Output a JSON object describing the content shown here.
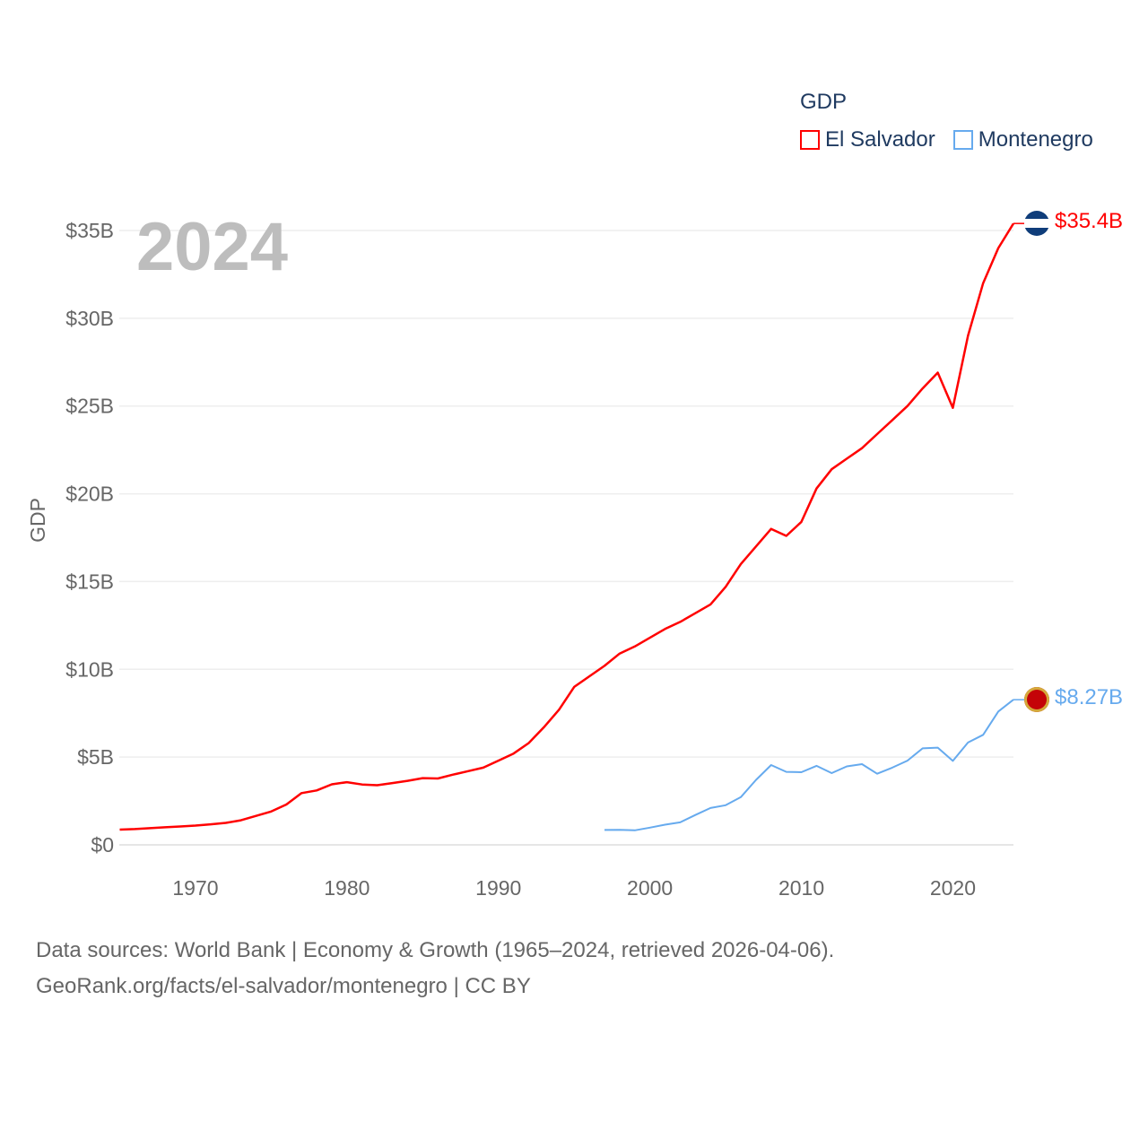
{
  "chart_data": {
    "type": "line",
    "title": "2024",
    "ylabel": "GDP",
    "xlabel": "",
    "xlim": [
      1965,
      2024
    ],
    "ylim": [
      0,
      35
    ],
    "x_ticks": [
      1970,
      1980,
      1990,
      2000,
      2010,
      2020
    ],
    "y_ticks": [
      {
        "v": 0,
        "label": "$0"
      },
      {
        "v": 5,
        "label": "$5B"
      },
      {
        "v": 10,
        "label": "$10B"
      },
      {
        "v": 15,
        "label": "$15B"
      },
      {
        "v": 20,
        "label": "$20B"
      },
      {
        "v": 25,
        "label": "$25B"
      },
      {
        "v": 30,
        "label": "$30B"
      },
      {
        "v": 35,
        "label": "$35B"
      }
    ],
    "legend_title": "GDP",
    "legend_position": "top-right",
    "grid": true,
    "series": [
      {
        "name": "El Salvador",
        "color": "#ff0000",
        "start_year": 1965,
        "end_label": "$35.4B",
        "values": [
          0.87,
          0.9,
          0.95,
          1.0,
          1.05,
          1.1,
          1.17,
          1.25,
          1.4,
          1.65,
          1.9,
          2.3,
          2.95,
          3.1,
          3.45,
          3.57,
          3.44,
          3.4,
          3.52,
          3.65,
          3.8,
          3.78,
          4.0,
          4.2,
          4.4,
          4.8,
          5.2,
          5.8,
          6.7,
          7.7,
          9.0,
          9.6,
          10.2,
          10.9,
          11.3,
          11.8,
          12.3,
          12.7,
          13.2,
          13.7,
          14.7,
          16.0,
          17.0,
          18.0,
          17.6,
          18.4,
          20.3,
          21.4,
          22.0,
          22.6,
          23.4,
          24.2,
          25.0,
          26.0,
          26.9,
          24.9,
          29.0,
          32.0,
          34.0,
          35.4
        ]
      },
      {
        "name": "Montenegro",
        "color": "#66aaee",
        "start_year": 1997,
        "end_label": "$8.27B",
        "values": [
          0.85,
          0.86,
          0.83,
          0.98,
          1.15,
          1.28,
          1.7,
          2.1,
          2.26,
          2.72,
          3.7,
          4.55,
          4.16,
          4.14,
          4.5,
          4.09,
          4.47,
          4.6,
          4.05,
          4.4,
          4.8,
          5.5,
          5.54,
          4.78,
          5.83,
          6.27,
          7.6,
          8.27
        ]
      }
    ]
  },
  "source_line1": "Data sources: World Bank | Economy & Growth (1965–2024, retrieved 2026-04-06).",
  "source_line2": "GeoRank.org/facts/el-salvador/montenegro | CC BY"
}
